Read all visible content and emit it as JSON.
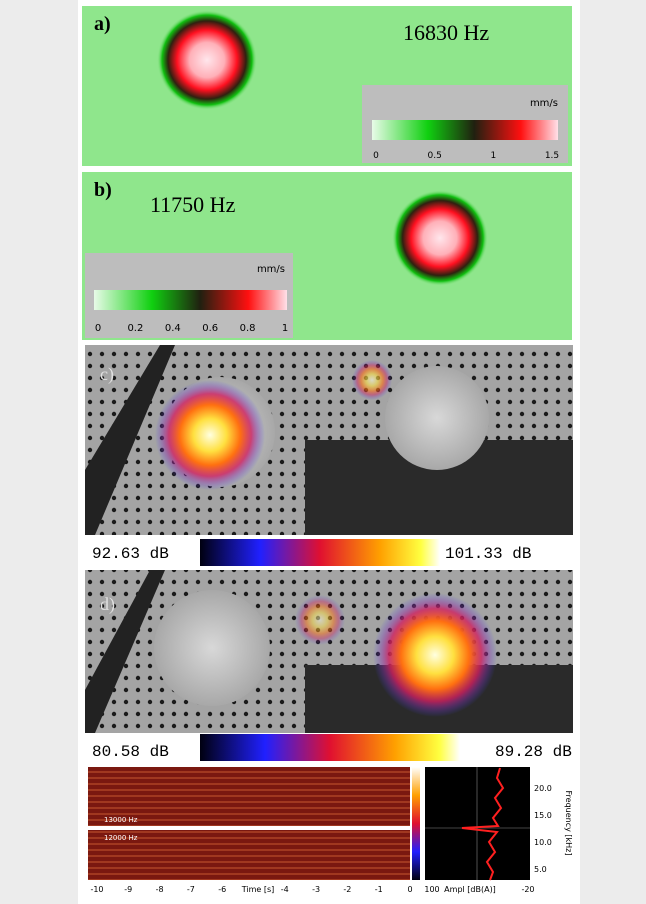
{
  "panels": [
    {
      "label": "a)",
      "frequency": "16830 Hz",
      "colorbar": {
        "unit": "mm/s",
        "ticks": [
          "0",
          "0.5",
          "1",
          "1.5"
        ]
      }
    },
    {
      "label": "b)",
      "frequency": "11750 Hz",
      "colorbar": {
        "unit": "mm/s",
        "ticks": [
          "0",
          "0.2",
          "0.4",
          "0.6",
          "0.8",
          "1"
        ]
      }
    },
    {
      "label": "c)",
      "colorbar": {
        "min": "92.63 dB",
        "max": "101.33 dB"
      }
    },
    {
      "label": "d)",
      "colorbar": {
        "min": "80.58 dB",
        "max": "89.28 dB"
      }
    }
  ],
  "spectrogram": {
    "line_labels": [
      "13000 Hz",
      "12000 Hz"
    ],
    "time_ticks": [
      "-10",
      "-9",
      "-8",
      "-7",
      "-6",
      "-4",
      "-3",
      "-2",
      "-1",
      "0"
    ],
    "time_axis_label": "Time [s]",
    "ampl_ticks": [
      "100",
      "-20"
    ],
    "ampl_axis_label": "Ampl [dB(A)]",
    "freq_ticks": [
      "20.0",
      "15.0",
      "10.0",
      "5.0"
    ],
    "freq_axis_label": "Frequency [kHz]"
  }
}
